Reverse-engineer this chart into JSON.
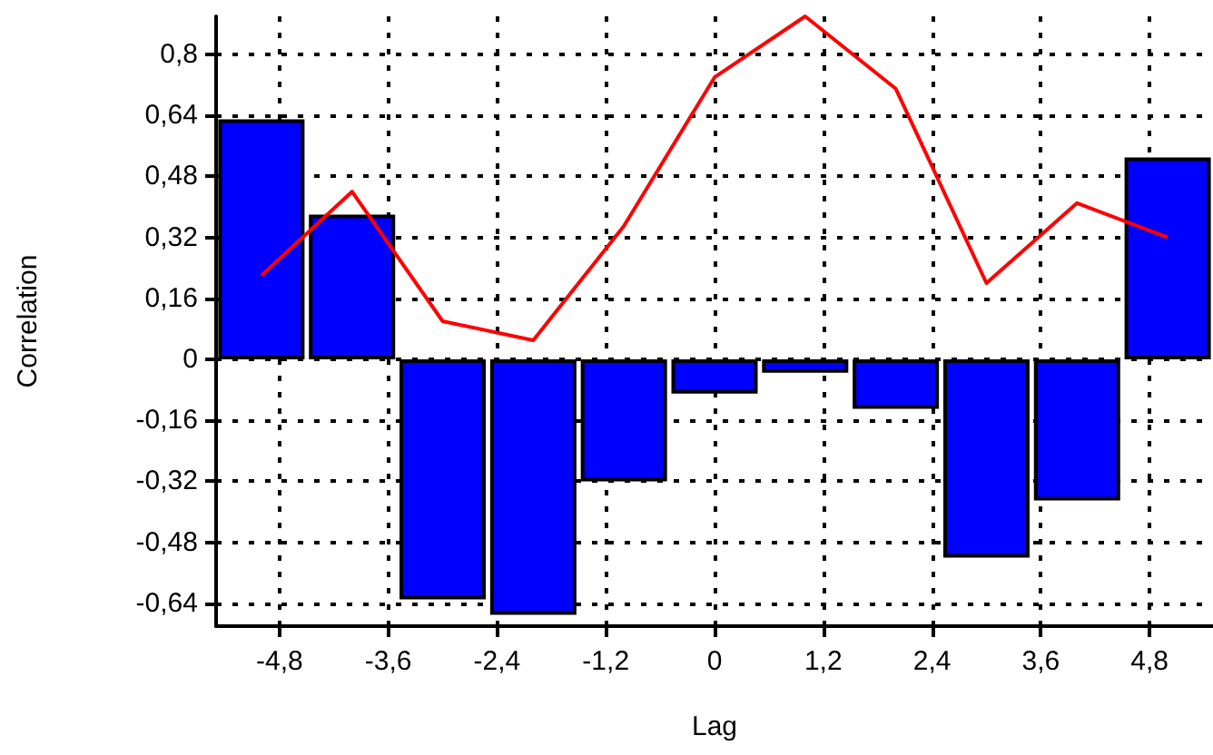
{
  "chart_data": {
    "type": "bar",
    "xlabel": "Lag",
    "ylabel": "Correlation",
    "x": [
      -5,
      -4,
      -3,
      -2,
      -1,
      0,
      1,
      2,
      3,
      4,
      5
    ],
    "series": [
      {
        "color": "#0000ff",
        "values": [
          0.63,
          0.38,
          -0.63,
          -0.67,
          -0.32,
          -0.09,
          -0.035,
          -0.13,
          -0.52,
          -0.37,
          0.53
        ]
      },
      {
        "type": "line",
        "color": "#ff0000",
        "marker": "none",
        "line_style": "solid",
        "values": [
          0.22,
          0.44,
          0.1,
          0.05,
          0.35,
          0.74,
          0.9,
          0.71,
          0.2,
          0.41,
          0.32
        ]
      }
    ],
    "xlim": [
      -5.5,
      5.5
    ],
    "xticks": [
      {
        "value": -4.8,
        "label": "-4,8"
      },
      {
        "value": -3.6,
        "label": "-3,6"
      },
      {
        "value": -2.4,
        "label": "-2,4"
      },
      {
        "value": -1.2,
        "label": "-1,2"
      },
      0,
      {
        "value": 1.2,
        "label": "1,2"
      },
      {
        "value": 2.4,
        "label": "2,4"
      },
      {
        "value": 3.6,
        "label": "3,6"
      },
      {
        "value": 4.8,
        "label": "4,8"
      }
    ],
    "ylim": [
      -0.7,
      0.9
    ],
    "yticks": [
      {
        "value": -0.64,
        "label": "-0,64"
      },
      {
        "value": -0.48,
        "label": "-0,48"
      },
      {
        "value": -0.32,
        "label": "-0,32"
      },
      {
        "value": -0.16,
        "label": "-0,16"
      },
      0,
      {
        "value": 0.16,
        "label": "0,16"
      },
      {
        "value": 0.32,
        "label": "0,32"
      },
      {
        "value": 0.48,
        "label": "0,48"
      },
      {
        "value": 0.64,
        "label": "0,64"
      },
      {
        "value": 0.8,
        "label": "0,8"
      }
    ],
    "grid": true
  }
}
